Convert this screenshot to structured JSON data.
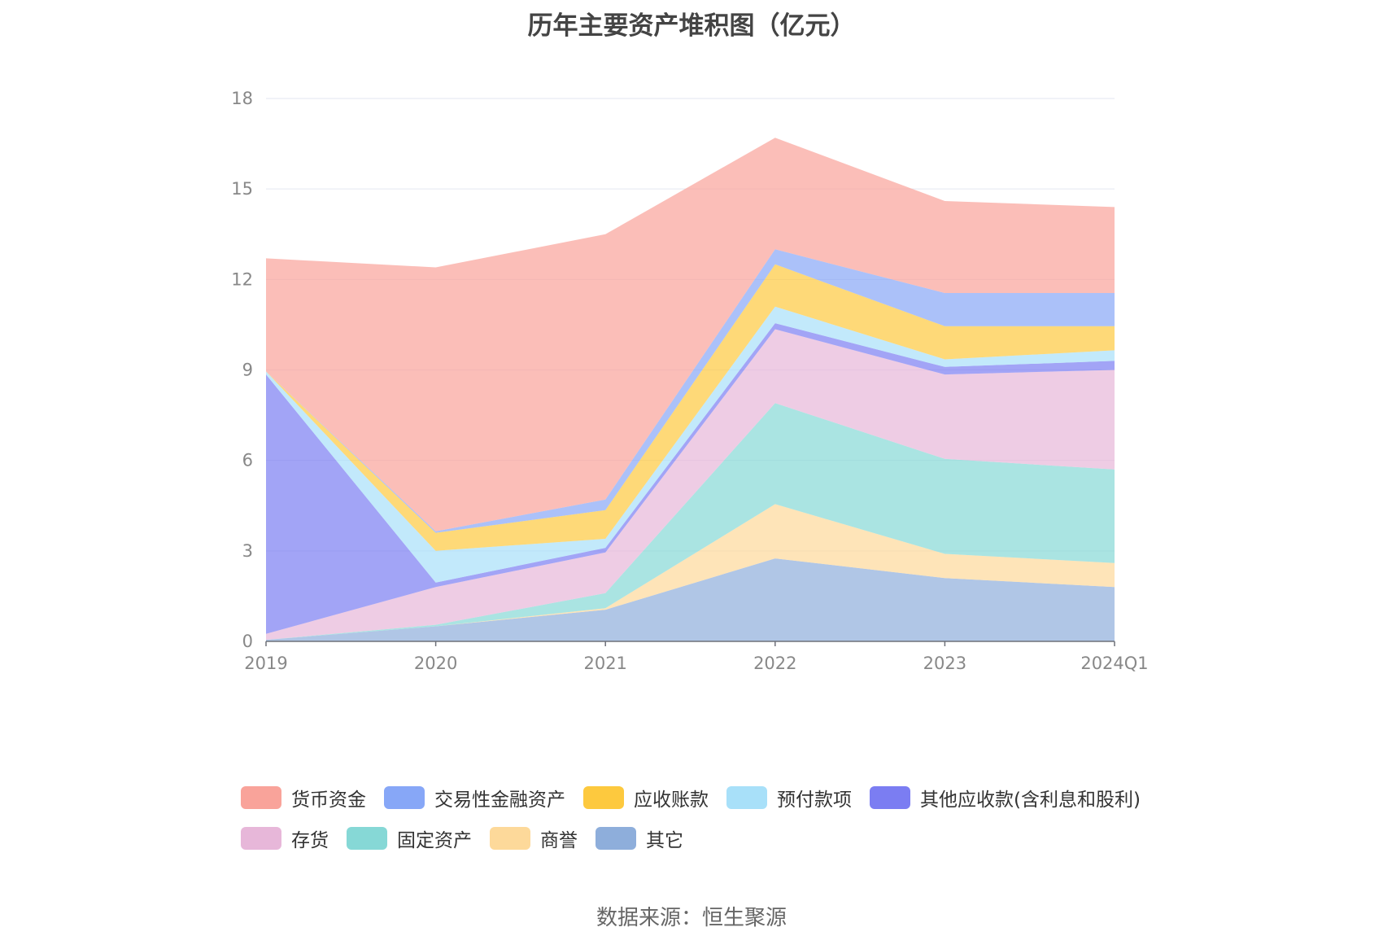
{
  "chart_data": {
    "type": "area",
    "stacked": true,
    "title": "历年主要资产堆积图（亿元）",
    "source": "数据来源：恒生聚源",
    "categories": [
      "2019",
      "2020",
      "2021",
      "2022",
      "2023",
      "2024Q1"
    ],
    "ylim": [
      0,
      18
    ],
    "yticks": [
      "0",
      "3",
      "6",
      "9",
      "12",
      "15",
      "18"
    ],
    "grid": true,
    "legend_position": "bottom",
    "series": [
      {
        "name": "其它",
        "color": "#8eaedb",
        "values": [
          0.05,
          0.5,
          1.05,
          2.75,
          2.1,
          1.8
        ]
      },
      {
        "name": "商誉",
        "color": "#fdd99a",
        "values": [
          0,
          0,
          0.05,
          1.8,
          0.8,
          0.8
        ]
      },
      {
        "name": "固定资产",
        "color": "#86d8d6",
        "values": [
          0,
          0.05,
          0.5,
          3.35,
          3.15,
          3.1
        ]
      },
      {
        "name": "存货",
        "color": "#e7b7d9",
        "values": [
          0.2,
          1.25,
          1.35,
          2.45,
          2.8,
          3.3
        ]
      },
      {
        "name": "其他应收款(含利息和股利)",
        "color": "#7b7df2",
        "values": [
          8.6,
          0.15,
          0.15,
          0.2,
          0.25,
          0.3
        ]
      },
      {
        "name": "预付款项",
        "color": "#a8e0f9",
        "values": [
          0.1,
          1.05,
          0.3,
          0.55,
          0.25,
          0.35
        ]
      },
      {
        "name": "应收账款",
        "color": "#fdc93e",
        "values": [
          0,
          0.6,
          0.95,
          1.4,
          1.1,
          0.8
        ]
      },
      {
        "name": "交易性金融资产",
        "color": "#87a7f7",
        "values": [
          0,
          0.05,
          0.35,
          0.5,
          1.1,
          1.1
        ]
      },
      {
        "name": "货币资金",
        "color": "#f9a39a",
        "values": [
          3.75,
          8.75,
          8.8,
          3.7,
          3.05,
          2.85
        ]
      }
    ]
  },
  "legend_rows": [
    [
      {
        "label": "货币资金",
        "color": "#f9a39a"
      },
      {
        "label": "交易性金融资产",
        "color": "#87a7f7"
      },
      {
        "label": "应收账款",
        "color": "#fdc93e"
      },
      {
        "label": "预付款项",
        "color": "#a8e0f9"
      },
      {
        "label": "其他应收款(含利息和股利)",
        "color": "#7b7df2"
      }
    ],
    [
      {
        "label": "存货",
        "color": "#e7b7d9"
      },
      {
        "label": "固定资产",
        "color": "#86d8d6"
      },
      {
        "label": "商誉",
        "color": "#fdd99a"
      },
      {
        "label": "其它",
        "color": "#8eaedb"
      }
    ]
  ]
}
